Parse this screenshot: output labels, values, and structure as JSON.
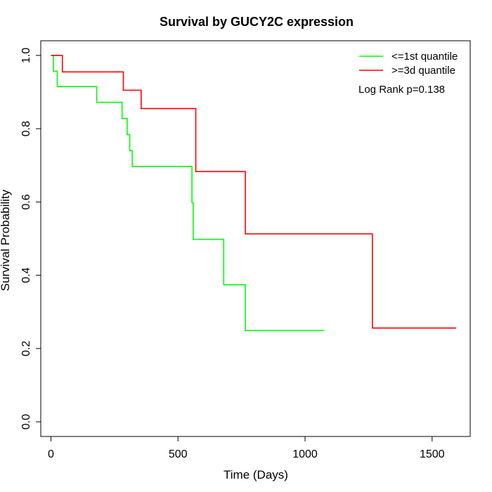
{
  "chart_data": {
    "type": "line",
    "title": "Survival by GUCY2C expression",
    "xlabel": "Time (Days)",
    "ylabel": "Survival Probability",
    "xlim": [
      -40,
      1650
    ],
    "ylim": [
      -0.04,
      1.04
    ],
    "xticks": [
      0,
      500,
      1000,
      1500
    ],
    "yticks": [
      0.0,
      0.2,
      0.4,
      0.6,
      0.8,
      1.0
    ],
    "xtick_labels": [
      "0",
      "500",
      "1000",
      "1500"
    ],
    "ytick_labels": [
      "0.0",
      "0.2",
      "0.4",
      "0.6",
      "0.8",
      "1.0"
    ],
    "grid": false,
    "legend_position": "top-right",
    "series": [
      {
        "name": "<=1st quantile",
        "color": "#00ff00",
        "step": true,
        "x": [
          0,
          10,
          25,
          180,
          280,
          300,
          310,
          320,
          330,
          555,
          560,
          680,
          765,
          1075
        ],
        "y": [
          1.0,
          0.957,
          0.915,
          0.872,
          0.828,
          0.784,
          0.74,
          0.697,
          0.697,
          0.598,
          0.498,
          0.374,
          0.249,
          0.249
        ]
      },
      {
        "name": ">=3d quantile",
        "color": "#ff0000",
        "step": true,
        "x": [
          0,
          45,
          285,
          355,
          570,
          765,
          1265,
          1595
        ],
        "y": [
          1.0,
          0.955,
          0.905,
          0.855,
          0.683,
          0.513,
          0.256,
          0.256
        ]
      }
    ],
    "annotation": "Log Rank p=0.138"
  }
}
